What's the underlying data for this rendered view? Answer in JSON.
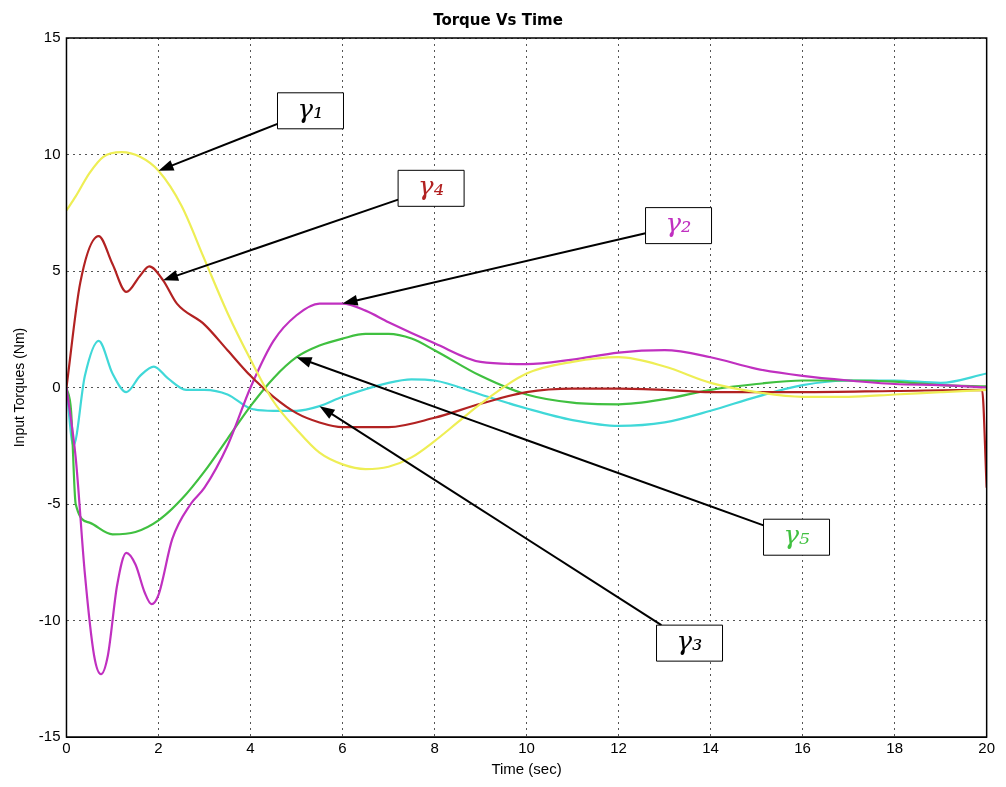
{
  "chart_data": {
    "type": "line",
    "title": "Torque Vs Time",
    "xlabel": "Time (sec)",
    "ylabel": "Input Torques (Nm)",
    "xlim": [
      0,
      20
    ],
    "xticks": [
      0,
      2,
      4,
      6,
      8,
      10,
      12,
      14,
      16,
      18,
      20
    ],
    "ylim": [
      -15,
      15
    ],
    "yticks": [
      -15,
      -10,
      -5,
      0,
      5,
      10,
      15
    ],
    "grid": true,
    "legend": false,
    "marker": "none",
    "line_style": "solid",
    "series": [
      {
        "name": "γ₁",
        "color": "#eeee55",
        "x": [
          0,
          0.2,
          0.5,
          0.8,
          1.2,
          1.6,
          2,
          2.5,
          3,
          3.5,
          4,
          4.5,
          5,
          5.5,
          6,
          6.5,
          7,
          7.5,
          8,
          8.5,
          9,
          10,
          11,
          12,
          13,
          14,
          15,
          16,
          17,
          18,
          19,
          20
        ],
        "values": [
          7.6,
          8.2,
          9.2,
          9.9,
          10.1,
          9.9,
          9.3,
          7.8,
          5.5,
          3.2,
          1.2,
          -0.6,
          -1.8,
          -2.8,
          -3.3,
          -3.5,
          -3.4,
          -3.0,
          -2.3,
          -1.5,
          -0.7,
          0.6,
          1.1,
          1.3,
          0.9,
          0.2,
          -0.2,
          -0.4,
          -0.4,
          -0.3,
          -0.2,
          -0.1
        ]
      },
      {
        "name": "γ₄",
        "color": "#b22222",
        "x": [
          0,
          0.3,
          0.7,
          1,
          1.3,
          1.6,
          1.8,
          2.1,
          2.4,
          3,
          3.5,
          4,
          4.5,
          5,
          5.5,
          6,
          7,
          8,
          9,
          10,
          11,
          12,
          13,
          14,
          16,
          18,
          19.9,
          20
        ],
        "values": [
          0,
          4.5,
          6.5,
          5.3,
          4.1,
          4.8,
          5.2,
          4.6,
          3.6,
          2.7,
          1.6,
          0.5,
          -0.4,
          -1.1,
          -1.5,
          -1.7,
          -1.7,
          -1.3,
          -0.7,
          -0.2,
          -0.05,
          -0.05,
          -0.1,
          -0.2,
          -0.2,
          -0.15,
          -0.1,
          -4.3
        ]
      },
      {
        "name": "γ₂",
        "color": "#c030c0",
        "x": [
          0,
          0.2,
          0.4,
          0.6,
          0.75,
          0.9,
          1.1,
          1.3,
          1.5,
          1.7,
          1.85,
          2,
          2.3,
          2.7,
          3,
          3.5,
          4,
          4.5,
          5,
          5.5,
          6,
          6.5,
          7,
          8,
          9,
          10,
          11,
          12,
          13,
          14,
          15,
          16,
          17,
          18,
          19,
          20
        ],
        "values": [
          0,
          -3,
          -8,
          -11.5,
          -12.3,
          -11.5,
          -8.5,
          -7.1,
          -7.6,
          -8.8,
          -9.3,
          -8.9,
          -6.5,
          -5,
          -4.3,
          -2.5,
          0,
          2,
          3.1,
          3.6,
          3.6,
          3.3,
          2.8,
          1.9,
          1.1,
          1.0,
          1.2,
          1.5,
          1.6,
          1.3,
          0.8,
          0.5,
          0.3,
          0.15,
          0.1,
          0
        ]
      },
      {
        "name": "γ₅",
        "color": "#40c040",
        "x": [
          0,
          0.1,
          0.2,
          0.5,
          1,
          1.5,
          2,
          2.5,
          3,
          3.5,
          4,
          4.5,
          5,
          5.5,
          6,
          6.5,
          7,
          7.5,
          8,
          9,
          10,
          11,
          12,
          13,
          14,
          15,
          16,
          17,
          18,
          19,
          20
        ],
        "values": [
          0,
          -1,
          -5,
          -5.8,
          -6.3,
          -6.2,
          -5.7,
          -4.8,
          -3.6,
          -2.2,
          -0.8,
          0.4,
          1.3,
          1.8,
          2.1,
          2.3,
          2.3,
          2.1,
          1.6,
          0.5,
          -0.3,
          -0.65,
          -0.72,
          -0.5,
          -0.1,
          0.15,
          0.3,
          0.3,
          0.25,
          0.1,
          0.05
        ]
      },
      {
        "name": "γ₃",
        "color": "#40d8d8",
        "x": [
          0,
          0.15,
          0.4,
          0.7,
          1,
          1.3,
          1.6,
          1.9,
          2.2,
          2.6,
          3,
          3.5,
          4,
          4.5,
          5,
          5.5,
          6,
          7,
          7.5,
          8,
          9,
          10,
          11,
          12,
          13,
          14,
          15,
          16,
          17,
          18,
          19,
          20
        ],
        "values": [
          0,
          -2.5,
          0.5,
          2.0,
          0.6,
          -0.2,
          0.5,
          0.9,
          0.4,
          -0.1,
          -0.1,
          -0.3,
          -0.9,
          -1.0,
          -1.0,
          -0.8,
          -0.4,
          0.2,
          0.35,
          0.3,
          -0.3,
          -0.9,
          -1.4,
          -1.65,
          -1.5,
          -1.0,
          -0.4,
          0.1,
          0.3,
          0.3,
          0.2,
          0.6
        ]
      }
    ]
  }
}
